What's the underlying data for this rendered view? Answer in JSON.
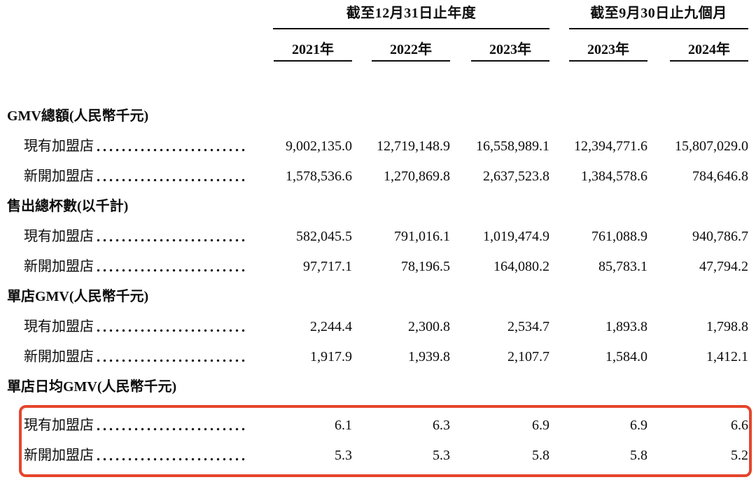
{
  "table": {
    "highlight_color": "#e5452c",
    "col_groups": [
      {
        "label": "截至12月31日止年度",
        "span_years": [
          "2021年",
          "2022年",
          "2023年"
        ]
      },
      {
        "label": "截至9月30日止九個月",
        "span_years": [
          "2023年",
          "2024年"
        ]
      }
    ],
    "years": [
      "2021年",
      "2022年",
      "2023年",
      "2023年",
      "2024年"
    ],
    "sections": [
      {
        "title": "GMV總額(人民幣千元)",
        "rows": [
          {
            "label": "現有加盟店",
            "values": [
              "9,002,135.0",
              "12,719,148.9",
              "16,558,989.1",
              "12,394,771.6",
              "15,807,029.0"
            ]
          },
          {
            "label": "新開加盟店",
            "values": [
              "1,578,536.6",
              "1,270,869.8",
              "2,637,523.8",
              "1,384,578.6",
              "784,646.8"
            ]
          }
        ]
      },
      {
        "title": "售出總杯數(以千計)",
        "rows": [
          {
            "label": "現有加盟店",
            "values": [
              "582,045.5",
              "791,016.1",
              "1,019,474.9",
              "761,088.9",
              "940,786.7"
            ]
          },
          {
            "label": "新開加盟店",
            "values": [
              "97,717.1",
              "78,196.5",
              "164,080.2",
              "85,783.1",
              "47,794.2"
            ]
          }
        ]
      },
      {
        "title": "單店GMV(人民幣千元)",
        "rows": [
          {
            "label": "現有加盟店",
            "values": [
              "2,244.4",
              "2,300.8",
              "2,534.7",
              "1,893.8",
              "1,798.8"
            ]
          },
          {
            "label": "新開加盟店",
            "values": [
              "1,917.9",
              "1,939.8",
              "2,107.7",
              "1,584.0",
              "1,412.1"
            ]
          }
        ]
      },
      {
        "title": "單店日均GMV(人民幣千元)",
        "highlighted": true,
        "rows": [
          {
            "label": "現有加盟店",
            "values": [
              "6.1",
              "6.3",
              "6.9",
              "6.9",
              "6.6"
            ]
          },
          {
            "label": "新開加盟店",
            "values": [
              "5.3",
              "5.3",
              "5.8",
              "5.8",
              "5.2"
            ]
          }
        ]
      }
    ]
  }
}
